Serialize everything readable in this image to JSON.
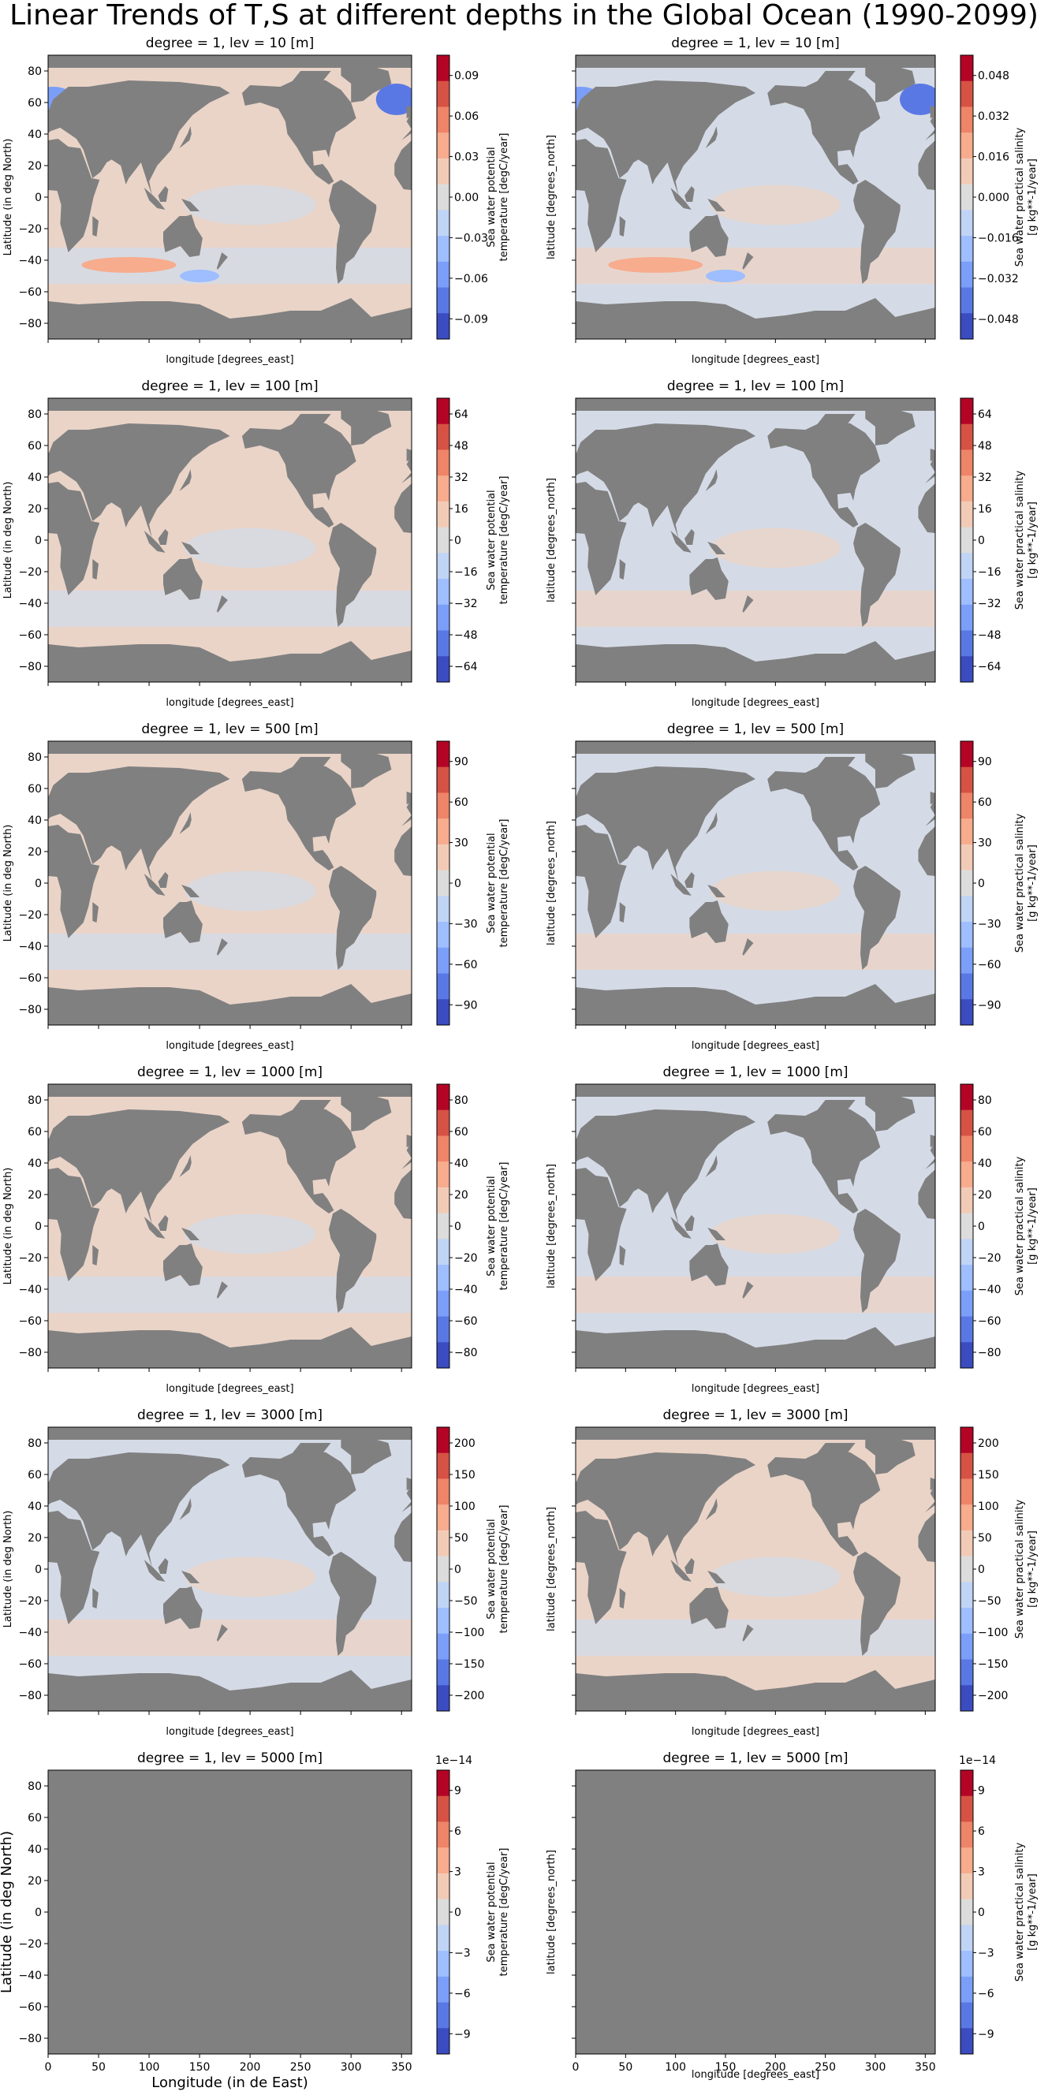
{
  "figure": {
    "title": "Linear Trends of T,S at different depths in the Global Ocean (1990-2099)"
  },
  "colors": {
    "land": "#808080",
    "ocean_warm": "#ead4c8",
    "ocean_cool": "#d5dbe6",
    "scale": [
      "#3b4cc0",
      "#5a78e4",
      "#7b9ff9",
      "#9ebeff",
      "#c0d4f5",
      "#dddcdc",
      "#f2cbb7",
      "#f7ac8e",
      "#ee8468",
      "#d65244",
      "#b40426"
    ]
  },
  "chart_data": [
    {
      "type": "heatmap",
      "row": 1,
      "col": 1,
      "variable": "temperature",
      "title": "degree = 1, lev = 10 [m]",
      "xlabel": "longitude [degrees_east]",
      "ylabel": "Latitude (in deg North)",
      "xlim": [
        0,
        360
      ],
      "ylim": [
        -90,
        90
      ],
      "xticks": [],
      "yticks": [
        -80,
        -60,
        -40,
        -20,
        0,
        20,
        40,
        60,
        80
      ],
      "colorbar": {
        "label": [
          "Sea water potential",
          "temperature [degC/year]"
        ],
        "ticks": [
          "0.09",
          "0.06",
          "0.03",
          "0.00",
          "−0.03",
          "−0.06",
          "−0.09"
        ],
        "offset": ""
      },
      "ocean_tint": "warm"
    },
    {
      "type": "heatmap",
      "row": 1,
      "col": 2,
      "variable": "salinity",
      "title": "degree = 1, lev = 10 [m]",
      "xlabel": "longitude [degrees_east]",
      "ylabel": "latitude [degrees_north]",
      "xlim": [
        0,
        360
      ],
      "ylim": [
        -90,
        90
      ],
      "xticks": [],
      "yticks": [],
      "colorbar": {
        "label": [
          "Sea water practical salinity",
          "[g kg**-1/year]"
        ],
        "ticks": [
          "0.048",
          "0.032",
          "0.016",
          "0.000",
          "−0.016",
          "−0.032",
          "−0.048"
        ],
        "offset": ""
      },
      "ocean_tint": "cool"
    },
    {
      "type": "heatmap",
      "row": 2,
      "col": 1,
      "variable": "temperature",
      "title": "degree = 1, lev = 100 [m]",
      "xlabel": "longitude [degrees_east]",
      "ylabel": "Latitude (in deg North)",
      "xlim": [
        0,
        360
      ],
      "ylim": [
        -90,
        90
      ],
      "xticks": [],
      "yticks": [
        -80,
        -60,
        -40,
        -20,
        0,
        20,
        40,
        60,
        80
      ],
      "colorbar": {
        "label": [
          "Sea water potential",
          "temperature [degC/year]"
        ],
        "ticks": [
          "64",
          "48",
          "32",
          "16",
          "0",
          "−16",
          "−32",
          "−48",
          "−64"
        ],
        "offset": ""
      },
      "ocean_tint": "warm"
    },
    {
      "type": "heatmap",
      "row": 2,
      "col": 2,
      "variable": "salinity",
      "title": "degree = 1, lev = 100 [m]",
      "xlabel": "longitude [degrees_east]",
      "ylabel": "latitude [degrees_north]",
      "xlim": [
        0,
        360
      ],
      "ylim": [
        -90,
        90
      ],
      "xticks": [],
      "yticks": [],
      "colorbar": {
        "label": [
          "Sea water practical salinity",
          "[g kg**-1/year]"
        ],
        "ticks": [
          "64",
          "48",
          "32",
          "16",
          "0",
          "−16",
          "−32",
          "−48",
          "−64"
        ],
        "offset": ""
      },
      "ocean_tint": "cool"
    },
    {
      "type": "heatmap",
      "row": 3,
      "col": 1,
      "variable": "temperature",
      "title": "degree = 1, lev = 500 [m]",
      "xlabel": "longitude [degrees_east]",
      "ylabel": "Latitude (in deg North)",
      "xlim": [
        0,
        360
      ],
      "ylim": [
        -90,
        90
      ],
      "xticks": [],
      "yticks": [
        -80,
        -60,
        -40,
        -20,
        0,
        20,
        40,
        60,
        80
      ],
      "colorbar": {
        "label": [
          "Sea water potential",
          "temperature [degC/year]"
        ],
        "ticks": [
          "90",
          "60",
          "30",
          "0",
          "−30",
          "−60",
          "−90"
        ],
        "offset": ""
      },
      "ocean_tint": "warm"
    },
    {
      "type": "heatmap",
      "row": 3,
      "col": 2,
      "variable": "salinity",
      "title": "degree = 1, lev = 500 [m]",
      "xlabel": "longitude [degrees_east]",
      "ylabel": "latitude [degrees_north]",
      "xlim": [
        0,
        360
      ],
      "ylim": [
        -90,
        90
      ],
      "xticks": [],
      "yticks": [],
      "colorbar": {
        "label": [
          "Sea water practical salinity",
          "[g kg**-1/year]"
        ],
        "ticks": [
          "90",
          "60",
          "30",
          "0",
          "−30",
          "−60",
          "−90"
        ],
        "offset": ""
      },
      "ocean_tint": "cool"
    },
    {
      "type": "heatmap",
      "row": 4,
      "col": 1,
      "variable": "temperature",
      "title": "degree = 1, lev = 1000 [m]",
      "xlabel": "longitude [degrees_east]",
      "ylabel": "Latitude (in deg North)",
      "xlim": [
        0,
        360
      ],
      "ylim": [
        -90,
        90
      ],
      "xticks": [],
      "yticks": [
        -80,
        -60,
        -40,
        -20,
        0,
        20,
        40,
        60,
        80
      ],
      "colorbar": {
        "label": [
          "Sea water potential",
          "temperature [degC/year]"
        ],
        "ticks": [
          "80",
          "60",
          "40",
          "20",
          "0",
          "−20",
          "−40",
          "−60",
          "−80"
        ],
        "offset": ""
      },
      "ocean_tint": "warm"
    },
    {
      "type": "heatmap",
      "row": 4,
      "col": 2,
      "variable": "salinity",
      "title": "degree = 1, lev = 1000 [m]",
      "xlabel": "longitude [degrees_east]",
      "ylabel": "latitude [degrees_north]",
      "xlim": [
        0,
        360
      ],
      "ylim": [
        -90,
        90
      ],
      "xticks": [],
      "yticks": [],
      "colorbar": {
        "label": [
          "Sea water practical salinity",
          "[g kg**-1/year]"
        ],
        "ticks": [
          "80",
          "60",
          "40",
          "20",
          "0",
          "−20",
          "−40",
          "−60",
          "−80"
        ],
        "offset": ""
      },
      "ocean_tint": "cool"
    },
    {
      "type": "heatmap",
      "row": 5,
      "col": 1,
      "variable": "temperature",
      "title": "degree = 1, lev = 3000 [m]",
      "xlabel": "longitude [degrees_east]",
      "ylabel": "Latitude (in deg North)",
      "xlim": [
        0,
        360
      ],
      "ylim": [
        -90,
        90
      ],
      "xticks": [],
      "yticks": [
        -80,
        -60,
        -40,
        -20,
        0,
        20,
        40,
        60,
        80
      ],
      "colorbar": {
        "label": [
          "Sea water potential",
          "temperature [degC/year]"
        ],
        "ticks": [
          "200",
          "150",
          "100",
          "50",
          "0",
          "−50",
          "−100",
          "−150",
          "−200"
        ],
        "offset": ""
      },
      "ocean_tint": "cool"
    },
    {
      "type": "heatmap",
      "row": 5,
      "col": 2,
      "variable": "salinity",
      "title": "degree = 1, lev = 3000 [m]",
      "xlabel": "longitude [degrees_east]",
      "ylabel": "latitude [degrees_north]",
      "xlim": [
        0,
        360
      ],
      "ylim": [
        -90,
        90
      ],
      "xticks": [],
      "yticks": [],
      "colorbar": {
        "label": [
          "Sea water practical salinity",
          "[g kg**-1/year]"
        ],
        "ticks": [
          "200",
          "150",
          "100",
          "50",
          "0",
          "−50",
          "−100",
          "−150",
          "−200"
        ],
        "offset": ""
      },
      "ocean_tint": "warm"
    },
    {
      "type": "heatmap",
      "row": 6,
      "col": 1,
      "variable": "temperature",
      "title": "degree = 1, lev = 5000 [m]",
      "xlabel": "Longitude (in de East)",
      "ylabel": "Latitude (in deg North)",
      "xlim": [
        0,
        360
      ],
      "ylim": [
        -90,
        90
      ],
      "xticks": [
        0,
        50,
        100,
        150,
        200,
        250,
        300,
        350
      ],
      "yticks": [
        -80,
        -60,
        -40,
        -20,
        0,
        20,
        40,
        60,
        80
      ],
      "big_labels": true,
      "colorbar": {
        "label": [
          "Sea water potential",
          "temperature [degC/year]"
        ],
        "ticks": [
          "9",
          "6",
          "3",
          "0",
          "−3",
          "−6",
          "−9"
        ],
        "offset": "1e−14"
      },
      "ocean_tint": "none"
    },
    {
      "type": "heatmap",
      "row": 6,
      "col": 2,
      "variable": "salinity",
      "title": "degree = 1, lev = 5000 [m]",
      "xlabel": "longitude [degrees_east]",
      "ylabel": "latitude [degrees_north]",
      "xlim": [
        0,
        360
      ],
      "ylim": [
        -90,
        90
      ],
      "xticks": [
        0,
        50,
        100,
        150,
        200,
        250,
        300,
        350
      ],
      "yticks": [],
      "colorbar": {
        "label": [
          "Sea water practical salinity",
          "[g kg**-1/year]"
        ],
        "ticks": [
          "9",
          "6",
          "3",
          "0",
          "−3",
          "−6",
          "−9"
        ],
        "offset": "1e−14"
      },
      "ocean_tint": "none"
    }
  ]
}
